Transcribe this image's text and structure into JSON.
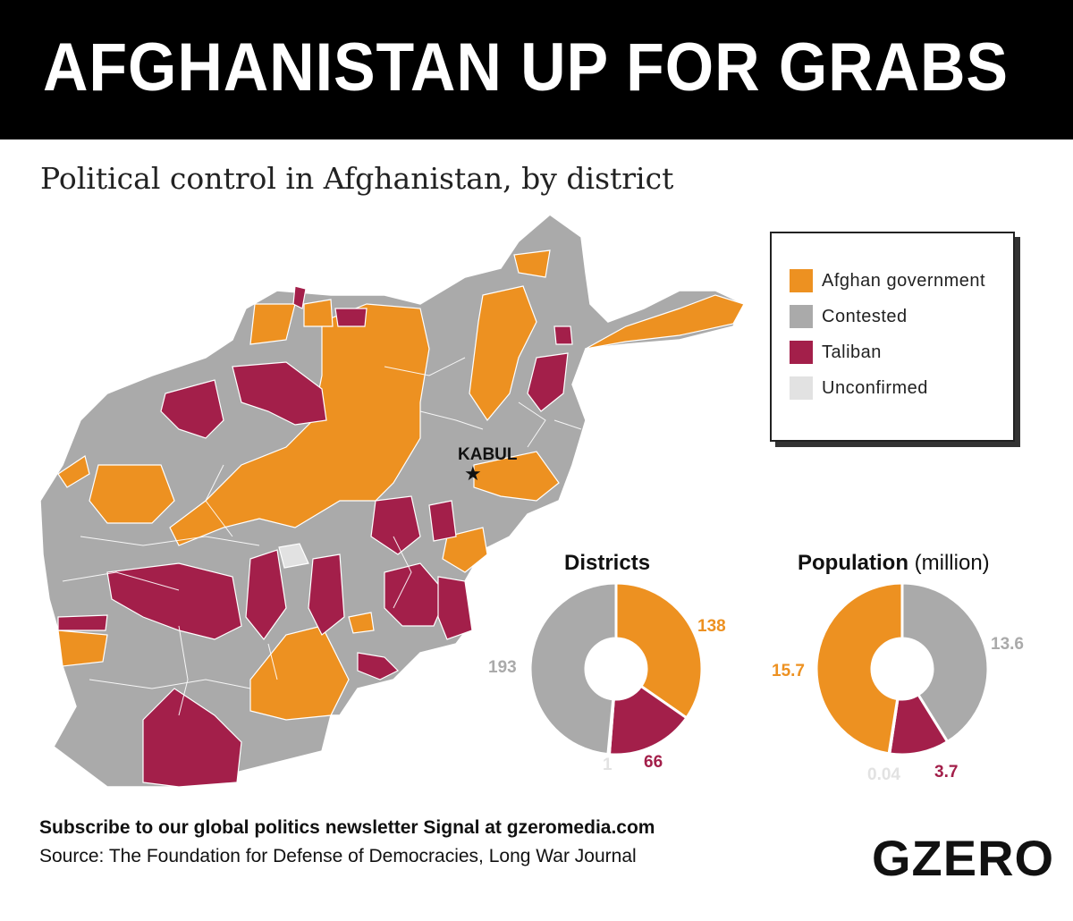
{
  "header": {
    "title": "AFGHANISTAN UP FOR GRABS"
  },
  "subtitle": "Political control in Afghanistan, by district",
  "legend": [
    {
      "label": "Afghan government",
      "color": "#ED9121"
    },
    {
      "label": "Contested",
      "color": "#AAAAAA"
    },
    {
      "label": "Taliban",
      "color": "#A31F4A"
    },
    {
      "label": "Unconfirmed",
      "color": "#E2E2E2"
    }
  ],
  "map": {
    "city_label": "KABUL",
    "city_marker": "star-icon"
  },
  "chart_data": [
    {
      "type": "pie",
      "title": "Districts",
      "categories": [
        "Afghan government",
        "Taliban",
        "Unconfirmed",
        "Contested"
      ],
      "values": [
        138,
        66,
        1,
        193
      ],
      "value_labels": [
        "138",
        "66",
        "1",
        "193"
      ],
      "colors": [
        "#ED9121",
        "#A31F4A",
        "#E2E2E2",
        "#AAAAAA"
      ]
    },
    {
      "type": "pie",
      "title": "Population",
      "title_unit": "(million)",
      "categories": [
        "Contested",
        "Taliban",
        "Unconfirmed",
        "Afghan government"
      ],
      "values": [
        13.6,
        3.7,
        0.04,
        15.7
      ],
      "value_labels": [
        "13.6",
        "3.7",
        "0.04",
        "15.7"
      ],
      "colors": [
        "#AAAAAA",
        "#A31F4A",
        "#E2E2E2",
        "#ED9121"
      ]
    }
  ],
  "footer": {
    "subscribe": "Subscribe to our global politics newsletter Signal at gzeromedia.com",
    "source": "Source: The Foundation for Defense of Democracies, Long War Journal"
  },
  "logo": "GZERO"
}
